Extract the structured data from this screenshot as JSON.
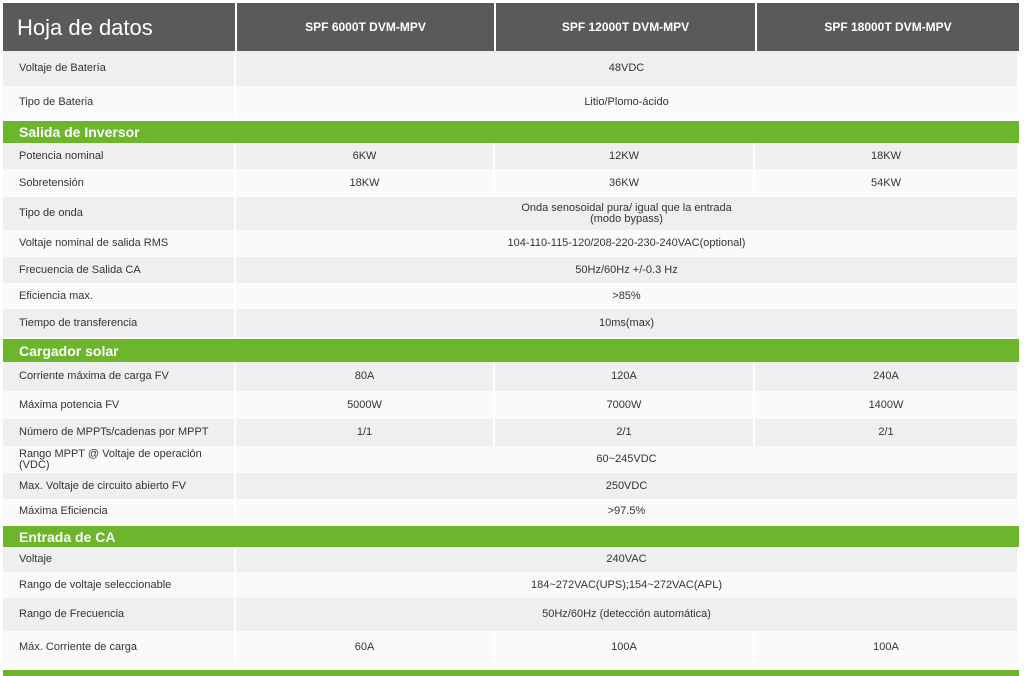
{
  "header": {
    "title": "Hoja de datos",
    "models": [
      "SPF 6000T DVM-MPV",
      "SPF 12000T DVM-MPV",
      "SPF 18000T DVM-MPV"
    ]
  },
  "colors": {
    "header_bg": "#5b5a58",
    "section_bg": "#6db52d"
  },
  "rows": [
    {
      "label": "Voltaje de Batería",
      "values": [
        "48VDC"
      ]
    },
    {
      "label": "Tipo de Bateria",
      "values": [
        "Litio/Plomo-ácido"
      ]
    },
    {
      "section": "Salida de Inversor"
    },
    {
      "label": "Potencia nominal",
      "values": [
        "6KW",
        "12KW",
        "18KW"
      ]
    },
    {
      "label": "Sobretensión",
      "values": [
        "18KW",
        "36KW",
        "54KW"
      ]
    },
    {
      "label": "Tipo de onda",
      "values": [
        "Onda senosoidal pura/ igual que la entrada\n(modo bypass)"
      ]
    },
    {
      "label": "Voltaje nominal de salida RMS",
      "values": [
        "104-110-115-120/208-220-230-240VAC(optional)"
      ]
    },
    {
      "label": "Frecuencia de Salida CA",
      "values": [
        "50Hz/60Hz +/-0.3 Hz"
      ]
    },
    {
      "label": "Eficiencia max.",
      "values": [
        ">85%"
      ]
    },
    {
      "label": "Tiempo de transferencia",
      "values": [
        "10ms(max)"
      ]
    },
    {
      "section": "Cargador solar"
    },
    {
      "label": "Corriente máxima de carga FV",
      "values": [
        "80A",
        "120A",
        "240A"
      ]
    },
    {
      "label": "Máxima potencia FV",
      "values": [
        "5000W",
        "7000W",
        "1400W"
      ]
    },
    {
      "label": "Número de MPPTs/cadenas por MPPT",
      "values": [
        "1/1",
        "2/1",
        "2/1"
      ]
    },
    {
      "label": "Rango MPPT @ Voltaje de operación (VDC)",
      "values": [
        "60~245VDC"
      ]
    },
    {
      "label": "Max. Voltaje de circuito abierto FV",
      "values": [
        "250VDC"
      ]
    },
    {
      "label": "Máxima Eficiencia",
      "values": [
        ">97.5%"
      ]
    },
    {
      "section": "Entrada de CA"
    },
    {
      "label": "Voltaje",
      "values": [
        "240VAC"
      ]
    },
    {
      "label": "Rango de voltaje seleccionable",
      "values": [
        "184~272VAC(UPS);154~272VAC(APL)"
      ]
    },
    {
      "label": "Rango de Frecuencia",
      "values": [
        "50Hz/60Hz (detección automática)"
      ]
    },
    {
      "label": "Máx. Corriente de carga",
      "values": [
        "60A",
        "100A",
        "100A"
      ]
    }
  ]
}
